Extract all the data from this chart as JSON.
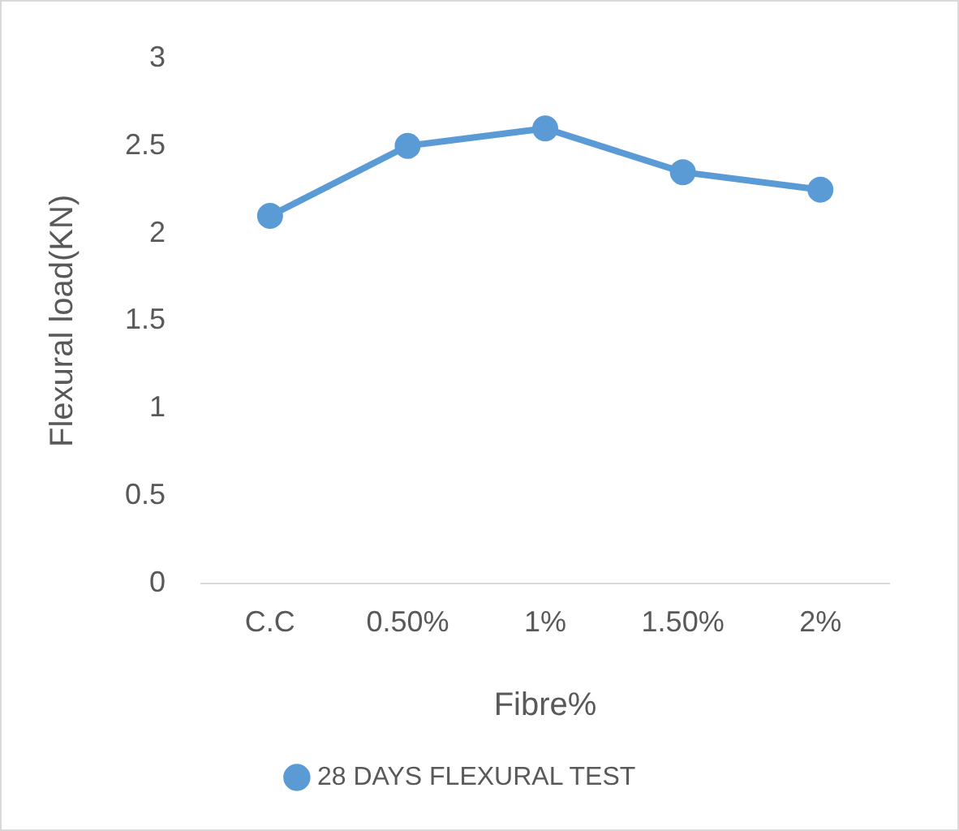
{
  "chart_data": {
    "type": "line",
    "xlabel": "Fibre%",
    "ylabel": "Flexural load(KN)",
    "categories": [
      "C.C",
      "0.50%",
      "1%",
      "1.50%",
      "2%"
    ],
    "series": [
      {
        "name": "28 DAYS FLEXURAL TEST",
        "color": "#5b9bd5",
        "values": [
          2.1,
          2.5,
          2.6,
          2.35,
          2.25
        ]
      }
    ],
    "ylim": [
      0,
      3
    ],
    "yticks": [
      0,
      0.5,
      1,
      1.5,
      2,
      2.5,
      3
    ],
    "grid": false,
    "legend": "bottom",
    "marker": "circle",
    "line_style": "solid"
  }
}
